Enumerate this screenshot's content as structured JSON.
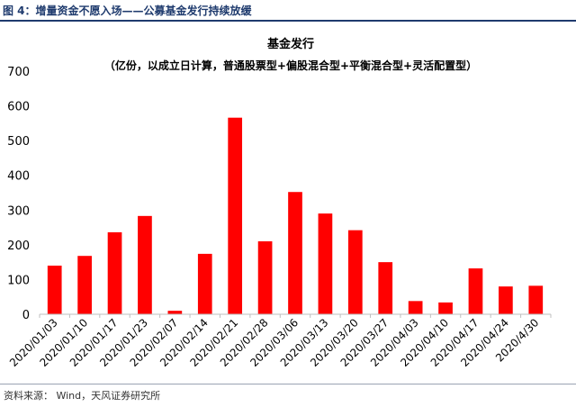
{
  "figure": {
    "title": "图 4：增量资金不愿入场——公募基金发行持续放缓",
    "source": "资料来源：  Wind，天风证券研究所"
  },
  "chart_data": {
    "type": "bar",
    "title": "基金发行",
    "subtitle": "（亿份，以成立日计算，普通股票型+偏股混合型+平衡混合型+灵活配置型）",
    "categories": [
      "2020/01/03",
      "2020/01/10",
      "2020/01/17",
      "2020/01/23",
      "2020/02/07",
      "2020/02/14",
      "2020/02/21",
      "2020/02/28",
      "2020/03/06",
      "2020/03/13",
      "2020/03/20",
      "2020/03/27",
      "2020/04/03",
      "2020/04/10",
      "2020/04/17",
      "2020/04/24",
      "2020/4/30"
    ],
    "values": [
      140,
      168,
      236,
      283,
      10,
      174,
      566,
      210,
      352,
      290,
      242,
      150,
      38,
      34,
      132,
      80,
      82
    ],
    "y_ticks": [
      "0",
      "100",
      "200",
      "300",
      "400",
      "500",
      "600",
      "700"
    ],
    "ylim": [
      0,
      700
    ],
    "grid": false,
    "legend": "none",
    "bar_color": "#ff0000"
  }
}
